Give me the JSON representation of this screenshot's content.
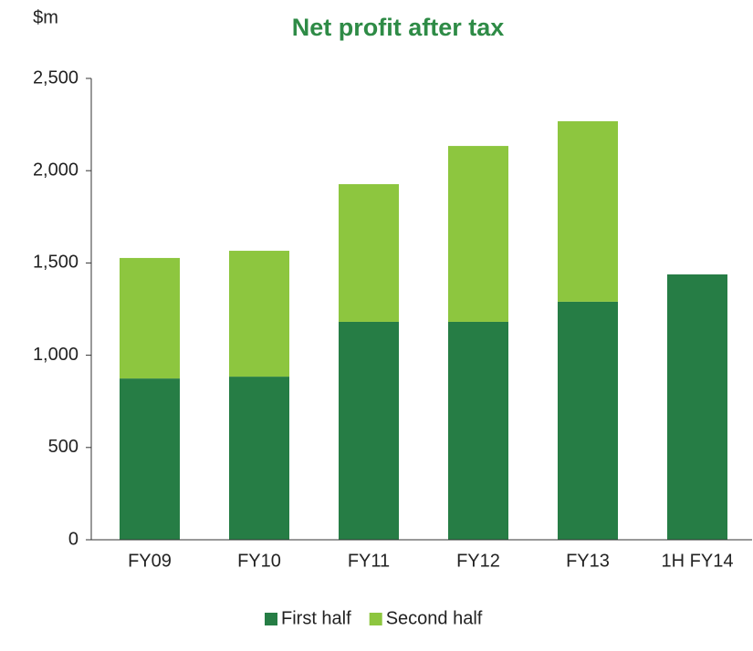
{
  "chart_data": {
    "type": "bar",
    "stacked": true,
    "title": "Net profit after tax",
    "y_label": "$m",
    "categories": [
      "FY09",
      "FY10",
      "FY11",
      "FY12",
      "FY13",
      "1H FY14"
    ],
    "series": [
      {
        "name": "First half",
        "color": "#267d45",
        "values": [
          874,
          884,
          1181,
          1181,
          1290,
          1438
        ]
      },
      {
        "name": "Second half",
        "color": "#8dc63f",
        "values": [
          653,
          682,
          746,
          953,
          978,
          null
        ]
      }
    ],
    "ylim": [
      0,
      2500
    ],
    "yticks": [
      0,
      {
        "value": 500,
        "label": "500"
      },
      {
        "value": 1000,
        "label": "1,000"
      },
      {
        "value": 1500,
        "label": "1,500"
      },
      {
        "value": 2000,
        "label": "2,000"
      },
      {
        "value": 2500,
        "label": "2,500"
      }
    ],
    "grid": false,
    "legend": "bottom"
  }
}
